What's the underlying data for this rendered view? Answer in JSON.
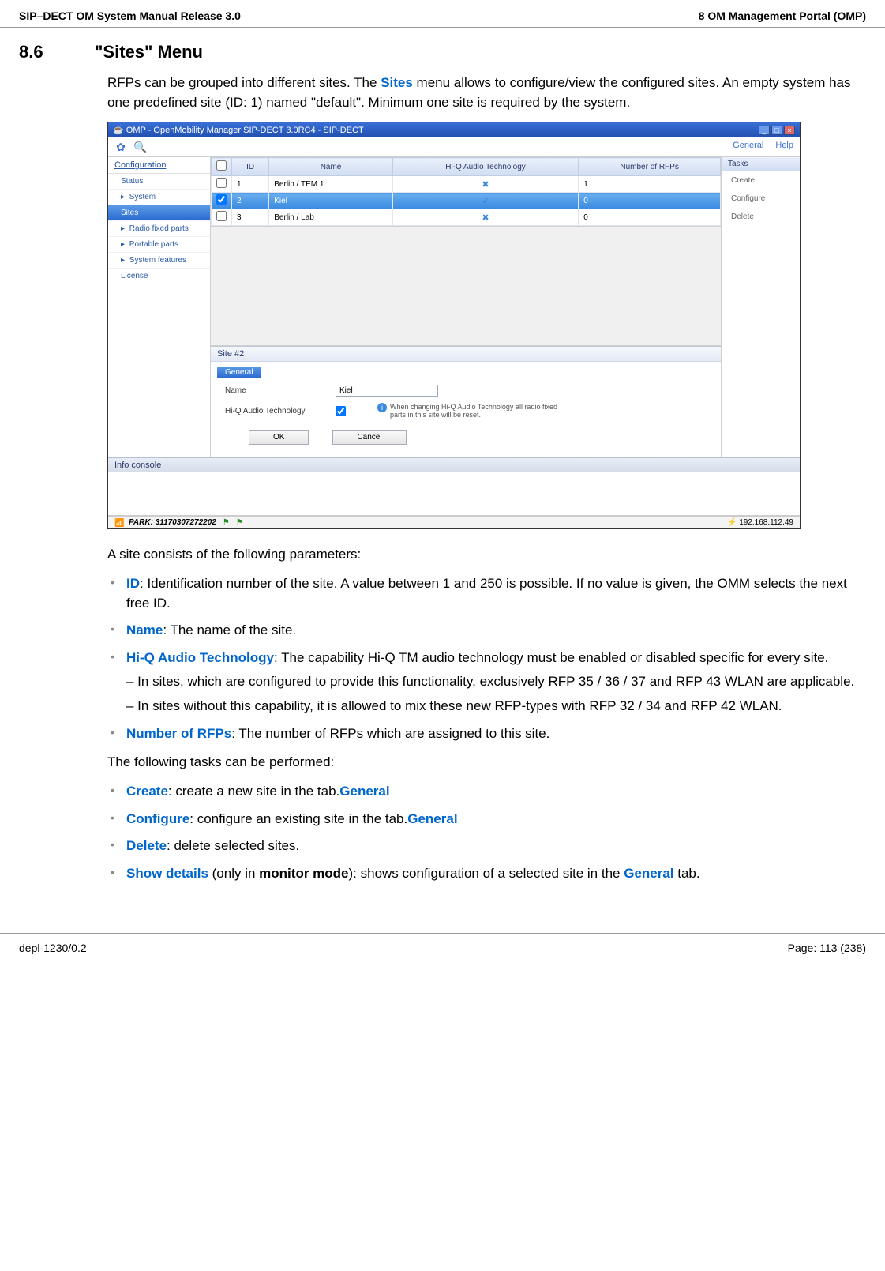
{
  "header": {
    "left": "SIP–DECT OM System Manual Release 3.0",
    "right": "8 OM Management Portal (OMP)"
  },
  "section": {
    "number": "8.6",
    "title": "\"Sites\" Menu"
  },
  "intro": {
    "p1a": "RFPs can be grouped into different sites. The ",
    "p1b": "Sites",
    "p1c": " menu allows to configure/view the configured sites. An empty system has one predefined site (ID: 1) named \"default\". Minimum one site is required by the system."
  },
  "screenshot": {
    "window_title": "OMP - OpenMobility Manager SIP-DECT 3.0RC4 - SIP-DECT",
    "toolbar": {
      "general": "General",
      "help": "Help"
    },
    "sidebar": {
      "header": "Configuration",
      "items": [
        {
          "label": "Status",
          "hasArrow": false
        },
        {
          "label": "System",
          "hasArrow": true
        },
        {
          "label": "Sites",
          "hasArrow": false,
          "active": true
        },
        {
          "label": "Radio fixed parts",
          "hasArrow": true
        },
        {
          "label": "Portable parts",
          "hasArrow": true
        },
        {
          "label": "System features",
          "hasArrow": true
        },
        {
          "label": "License",
          "hasArrow": false
        }
      ]
    },
    "table": {
      "columns": [
        "",
        "ID",
        "Name",
        "Hi-Q Audio Technology",
        "Number of RFPs"
      ],
      "rows": [
        {
          "checked": false,
          "id": "1",
          "name": "Berlin / TEM 1",
          "hiq": "✖",
          "rfps": "1"
        },
        {
          "checked": true,
          "id": "2",
          "name": "Kiel",
          "hiq": "✔",
          "rfps": "0",
          "selected": true
        },
        {
          "checked": false,
          "id": "3",
          "name": "Berlin / Lab",
          "hiq": "✖",
          "rfps": "0"
        }
      ]
    },
    "tasks": {
      "header": "Tasks",
      "items": [
        "Create",
        "Configure",
        "Delete"
      ]
    },
    "site_panel": {
      "header": "Site #2",
      "tab": "General",
      "name_label": "Name",
      "name_value": "Kiel",
      "hiq_label": "Hi-Q Audio Technology",
      "hiq_checked": true,
      "info": "When changing Hi-Q Audio Technology all radio fixed parts in this site will be reset.",
      "ok": "OK",
      "cancel": "Cancel"
    },
    "info_console": "Info console",
    "statusbar": {
      "park": "PARK: 31170307272202",
      "ip": "192.168.112.49"
    }
  },
  "after": {
    "intro": "A site consists of the following parameters:",
    "params": [
      {
        "bold": "ID",
        "text": ": Identification number of the site. A value between 1 and 250 is possible. If no value is given, the OMM selects the next free ID."
      },
      {
        "bold": "Name",
        "text": ": The name of the site."
      },
      {
        "bold": "Hi-Q Audio Technology",
        "text": ": The capability Hi-Q TM audio technology must be enabled or disabled specific for every site.",
        "subs": [
          "– In sites, which are configured to provide this functionality, exclusively RFP 35 / 36 / 37 and RFP 43 WLAN are applicable.",
          "– In sites without this capability, it is allowed to mix these new RFP-types with RFP 32 / 34 and RFP 42 WLAN."
        ]
      },
      {
        "bold": "Number of RFPs",
        "text": ": The number of RFPs which are assigned to this site."
      }
    ],
    "tasks_intro": "The following tasks can be performed:",
    "tasks": [
      {
        "bold": "Create",
        "text": ": create a new site in the ",
        "bold2": "General",
        "text2": " tab."
      },
      {
        "bold": "Configure",
        "text": ": configure an existing site in the ",
        "bold2": "General",
        "text2": " tab."
      },
      {
        "bold": "Delete",
        "text": ": delete selected sites."
      },
      {
        "bold": "Show details",
        "text": " (only in ",
        "plainbold": "monitor mode",
        "text2": "): shows configuration of a selected site in the ",
        "bold2": "General",
        "text3": " tab."
      }
    ]
  },
  "footer": {
    "left": "depl-1230/0.2",
    "right": "Page: 113 (238)"
  },
  "colors": {
    "link": "#0066cc"
  }
}
